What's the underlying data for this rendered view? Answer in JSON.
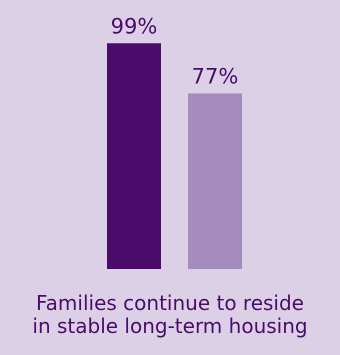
{
  "chart_data": {
    "type": "bar",
    "categories": [
      "",
      ""
    ],
    "values": [
      99,
      77
    ],
    "value_labels": [
      "99%",
      "77%"
    ],
    "ylim": [
      0,
      100
    ],
    "colors": [
      "#4b0b6b",
      "#a68bbf"
    ],
    "background": "#dcd0e6",
    "caption_lines": [
      "Families continue to reside",
      "in stable long-term housing"
    ]
  }
}
